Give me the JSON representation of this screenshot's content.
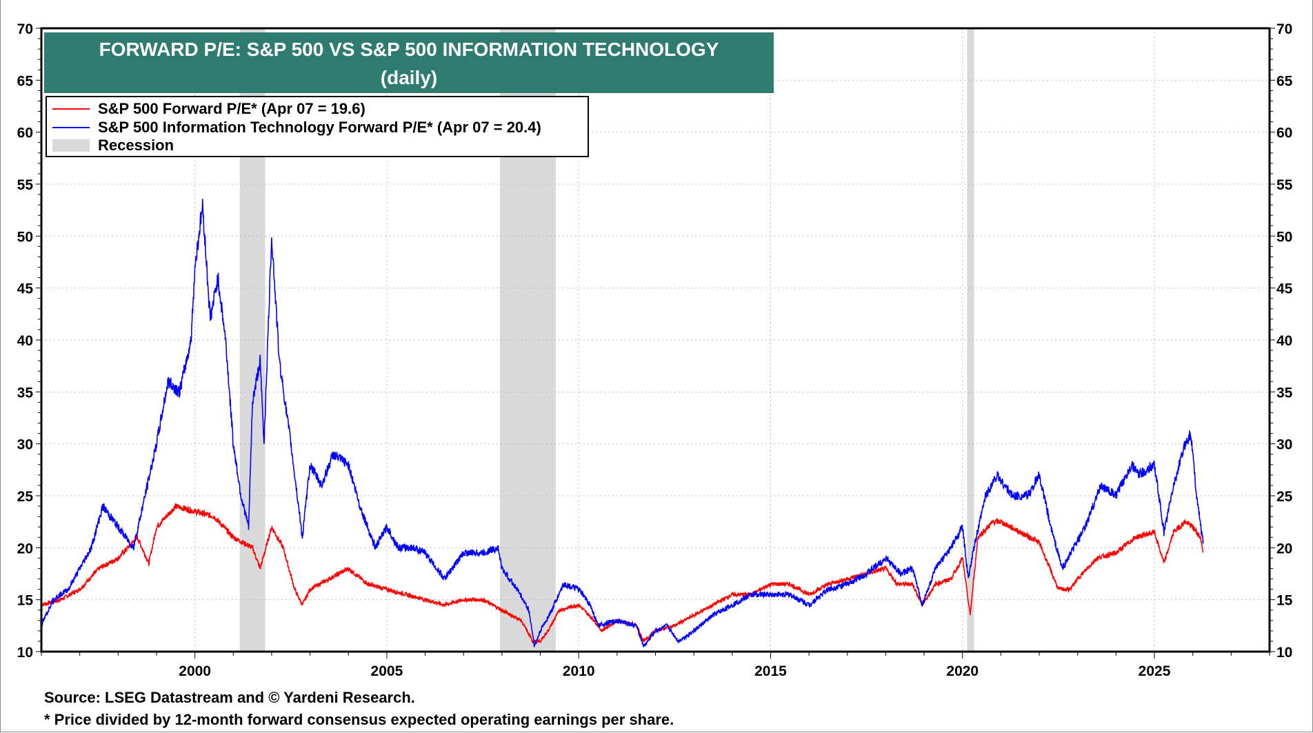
{
  "chart_data": {
    "type": "line",
    "title": "FORWARD P/E: S&P 500 VS S&P 500 INFORMATION TECHNOLOGY",
    "subtitle": "(daily)",
    "xlim": [
      1996,
      2028
    ],
    "ylim": [
      10,
      70
    ],
    "x_ticks": [
      2000,
      2005,
      2010,
      2015,
      2020,
      2025
    ],
    "y_ticks": [
      10,
      15,
      20,
      25,
      30,
      35,
      40,
      45,
      50,
      55,
      60,
      65,
      70
    ],
    "y_axis": "both sides",
    "grid": "dotted, on",
    "legend_placement": "top-left",
    "recessions": [
      [
        2001.17,
        2001.83
      ],
      [
        2007.95,
        2009.4
      ],
      [
        2020.12,
        2020.3
      ]
    ],
    "recession_color": "#d9d9d9",
    "legend": {
      "red": "S&P 500 Forward P/E* (Apr 07 = 19.6)",
      "blue": "S&P 500 Information Technology Forward P/E* (Apr 07 = 20.4)",
      "recession": "Recession"
    },
    "series": [
      {
        "name": "S&P 500 Forward P/E*",
        "color": "#ff0000",
        "points": [
          [
            1996,
            14.5
          ],
          [
            1996.5,
            15
          ],
          [
            1997,
            16
          ],
          [
            1997.5,
            18
          ],
          [
            1998,
            19
          ],
          [
            1998.5,
            21
          ],
          [
            1998.8,
            18.5
          ],
          [
            1999,
            22
          ],
          [
            1999.5,
            24
          ],
          [
            2000,
            23.5
          ],
          [
            2000.5,
            23
          ],
          [
            2001,
            21
          ],
          [
            2001.5,
            20
          ],
          [
            2001.7,
            18
          ],
          [
            2002,
            22
          ],
          [
            2002.3,
            20
          ],
          [
            2002.6,
            16
          ],
          [
            2002.8,
            14.5
          ],
          [
            2003,
            16
          ],
          [
            2003.5,
            17
          ],
          [
            2004,
            18
          ],
          [
            2004.5,
            16.5
          ],
          [
            2005,
            16
          ],
          [
            2005.5,
            15.5
          ],
          [
            2006,
            15
          ],
          [
            2006.5,
            14.5
          ],
          [
            2007,
            15
          ],
          [
            2007.5,
            15
          ],
          [
            2008,
            14
          ],
          [
            2008.5,
            13
          ],
          [
            2008.8,
            11
          ],
          [
            2009,
            11
          ],
          [
            2009.2,
            12
          ],
          [
            2009.5,
            14
          ],
          [
            2010,
            14.5
          ],
          [
            2010.4,
            13
          ],
          [
            2010.6,
            12
          ],
          [
            2011,
            13
          ],
          [
            2011.5,
            12.5
          ],
          [
            2011.7,
            11
          ],
          [
            2012,
            12
          ],
          [
            2012.5,
            12.5
          ],
          [
            2013,
            13.5
          ],
          [
            2013.5,
            14.5
          ],
          [
            2014,
            15.5
          ],
          [
            2014.5,
            15.5
          ],
          [
            2015,
            16.5
          ],
          [
            2015.5,
            16.5
          ],
          [
            2016,
            15.5
          ],
          [
            2016.5,
            16.5
          ],
          [
            2017,
            17
          ],
          [
            2017.5,
            17.5
          ],
          [
            2018,
            18
          ],
          [
            2018.3,
            16.5
          ],
          [
            2018.7,
            16.5
          ],
          [
            2018.95,
            14.5
          ],
          [
            2019.3,
            16.5
          ],
          [
            2019.7,
            17
          ],
          [
            2020,
            19
          ],
          [
            2020.2,
            13.5
          ],
          [
            2020.4,
            21
          ],
          [
            2020.8,
            22.5
          ],
          [
            2021,
            22.5
          ],
          [
            2021.5,
            21.5
          ],
          [
            2022,
            20.5
          ],
          [
            2022.5,
            16
          ],
          [
            2022.8,
            16
          ],
          [
            2023,
            17
          ],
          [
            2023.5,
            19
          ],
          [
            2024,
            19.5
          ],
          [
            2024.5,
            21
          ],
          [
            2025,
            21.5
          ],
          [
            2025.25,
            18.5
          ],
          [
            2025.5,
            21.5
          ],
          [
            2025.8,
            22.5
          ],
          [
            2026,
            22
          ],
          [
            2026.2,
            21
          ],
          [
            2026.27,
            19.6
          ]
        ]
      },
      {
        "name": "S&P 500 Information Technology Forward P/E*",
        "color": "#0000ff",
        "points": [
          [
            1996,
            12.5
          ],
          [
            1996.3,
            15
          ],
          [
            1996.7,
            16
          ],
          [
            1997,
            18
          ],
          [
            1997.3,
            20
          ],
          [
            1997.6,
            24
          ],
          [
            1998,
            22
          ],
          [
            1998.4,
            20
          ],
          [
            1998.7,
            25
          ],
          [
            1999,
            30
          ],
          [
            1999.3,
            36
          ],
          [
            1999.6,
            35
          ],
          [
            1999.9,
            40
          ],
          [
            2000,
            47
          ],
          [
            2000.2,
            53
          ],
          [
            2000.4,
            42
          ],
          [
            2000.6,
            46
          ],
          [
            2000.8,
            40
          ],
          [
            2001,
            30
          ],
          [
            2001.2,
            25
          ],
          [
            2001.4,
            22
          ],
          [
            2001.5,
            34
          ],
          [
            2001.7,
            38
          ],
          [
            2001.8,
            30
          ],
          [
            2002,
            50
          ],
          [
            2002.2,
            38
          ],
          [
            2002.5,
            30
          ],
          [
            2002.7,
            24
          ],
          [
            2002.8,
            21
          ],
          [
            2003,
            28
          ],
          [
            2003.3,
            26
          ],
          [
            2003.6,
            29
          ],
          [
            2004,
            28
          ],
          [
            2004.3,
            24
          ],
          [
            2004.7,
            20
          ],
          [
            2005,
            22
          ],
          [
            2005.3,
            20
          ],
          [
            2005.7,
            20
          ],
          [
            2006,
            19.5
          ],
          [
            2006.5,
            17
          ],
          [
            2007,
            19.5
          ],
          [
            2007.5,
            19.5
          ],
          [
            2007.9,
            20
          ],
          [
            2008,
            18
          ],
          [
            2008.4,
            16
          ],
          [
            2008.7,
            14
          ],
          [
            2008.85,
            10.5
          ],
          [
            2009,
            12
          ],
          [
            2009.3,
            14
          ],
          [
            2009.6,
            16.5
          ],
          [
            2010,
            16
          ],
          [
            2010.3,
            14.5
          ],
          [
            2010.5,
            12.5
          ],
          [
            2011,
            13
          ],
          [
            2011.5,
            12.5
          ],
          [
            2011.7,
            10.5
          ],
          [
            2012,
            12
          ],
          [
            2012.3,
            12.5
          ],
          [
            2012.6,
            11
          ],
          [
            2013,
            12
          ],
          [
            2013.5,
            13.5
          ],
          [
            2014,
            14.5
          ],
          [
            2014.5,
            15.5
          ],
          [
            2015,
            15.5
          ],
          [
            2015.5,
            15.5
          ],
          [
            2016,
            14.5
          ],
          [
            2016.5,
            16
          ],
          [
            2017,
            16.5
          ],
          [
            2017.5,
            17.5
          ],
          [
            2018,
            19
          ],
          [
            2018.4,
            17.5
          ],
          [
            2018.7,
            18
          ],
          [
            2018.95,
            14.5
          ],
          [
            2019.3,
            18
          ],
          [
            2019.7,
            20
          ],
          [
            2020,
            22
          ],
          [
            2020.15,
            17
          ],
          [
            2020.3,
            20
          ],
          [
            2020.6,
            25
          ],
          [
            2020.9,
            27
          ],
          [
            2021.3,
            25
          ],
          [
            2021.7,
            25
          ],
          [
            2022,
            27
          ],
          [
            2022.3,
            22
          ],
          [
            2022.6,
            18
          ],
          [
            2022.9,
            20
          ],
          [
            2023.2,
            22
          ],
          [
            2023.6,
            26
          ],
          [
            2024,
            25
          ],
          [
            2024.4,
            28
          ],
          [
            2024.6,
            27
          ],
          [
            2025,
            28
          ],
          [
            2025.25,
            21.5
          ],
          [
            2025.5,
            26
          ],
          [
            2025.8,
            30
          ],
          [
            2025.95,
            31
          ],
          [
            2026.1,
            25
          ],
          [
            2026.27,
            20.4
          ]
        ]
      }
    ],
    "source": "Source: LSEG Datastream and © Yardeni Research.",
    "footnote": "* Price divided by 12-month forward consensus expected operating earnings per share."
  }
}
